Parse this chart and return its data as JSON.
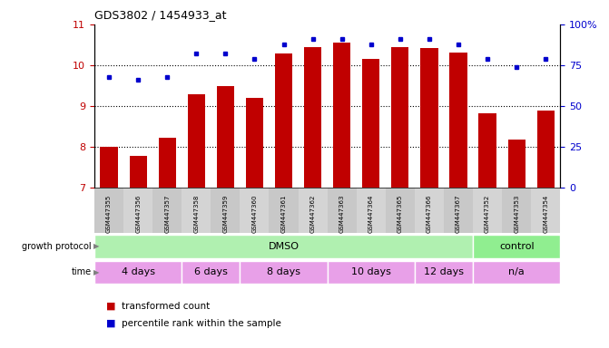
{
  "title": "GDS3802 / 1454933_at",
  "samples": [
    "GSM447355",
    "GSM447356",
    "GSM447357",
    "GSM447358",
    "GSM447359",
    "GSM447360",
    "GSM447361",
    "GSM447362",
    "GSM447363",
    "GSM447364",
    "GSM447365",
    "GSM447366",
    "GSM447367",
    "GSM447352",
    "GSM447353",
    "GSM447354"
  ],
  "bar_values": [
    8.0,
    7.78,
    8.22,
    9.28,
    9.5,
    9.2,
    10.28,
    10.45,
    10.55,
    10.15,
    10.45,
    10.42,
    10.3,
    8.82,
    8.18,
    8.9
  ],
  "dot_values": [
    68,
    66,
    68,
    82,
    82,
    79,
    88,
    91,
    91,
    88,
    91,
    91,
    88,
    79,
    74,
    79
  ],
  "bar_color": "#c00000",
  "dot_color": "#0000cd",
  "ylim_left": [
    7,
    11
  ],
  "ylim_right": [
    0,
    100
  ],
  "yticks_left": [
    7,
    8,
    9,
    10,
    11
  ],
  "yticks_right": [
    0,
    25,
    50,
    75,
    100
  ],
  "ytick_labels_right": [
    "0",
    "25",
    "50",
    "75",
    "100%"
  ],
  "grid_values": [
    8,
    9,
    10
  ],
  "growth_protocol": [
    {
      "label": "DMSO",
      "span": [
        0,
        13
      ],
      "color": "#b0f0b0"
    },
    {
      "label": "control",
      "span": [
        13,
        16
      ],
      "color": "#90ee90"
    }
  ],
  "time_groups": [
    {
      "label": "4 days",
      "span": [
        0,
        3
      ],
      "color": "#e8a0e8"
    },
    {
      "label": "6 days",
      "span": [
        3,
        5
      ],
      "color": "#e8a0e8"
    },
    {
      "label": "8 days",
      "span": [
        5,
        8
      ],
      "color": "#e8a0e8"
    },
    {
      "label": "10 days",
      "span": [
        8,
        11
      ],
      "color": "#e8a0e8"
    },
    {
      "label": "12 days",
      "span": [
        11,
        13
      ],
      "color": "#e8a0e8"
    },
    {
      "label": "n/a",
      "span": [
        13,
        16
      ],
      "color": "#e8a0e8"
    }
  ],
  "protocol_label": "growth protocol",
  "time_label": "time",
  "legend_bar": "transformed count",
  "legend_dot": "percentile rank within the sample",
  "background_color": "#ffffff",
  "tick_color_left": "#c00000",
  "tick_color_right": "#0000cd",
  "sample_label_bg": "#d0d0d0"
}
